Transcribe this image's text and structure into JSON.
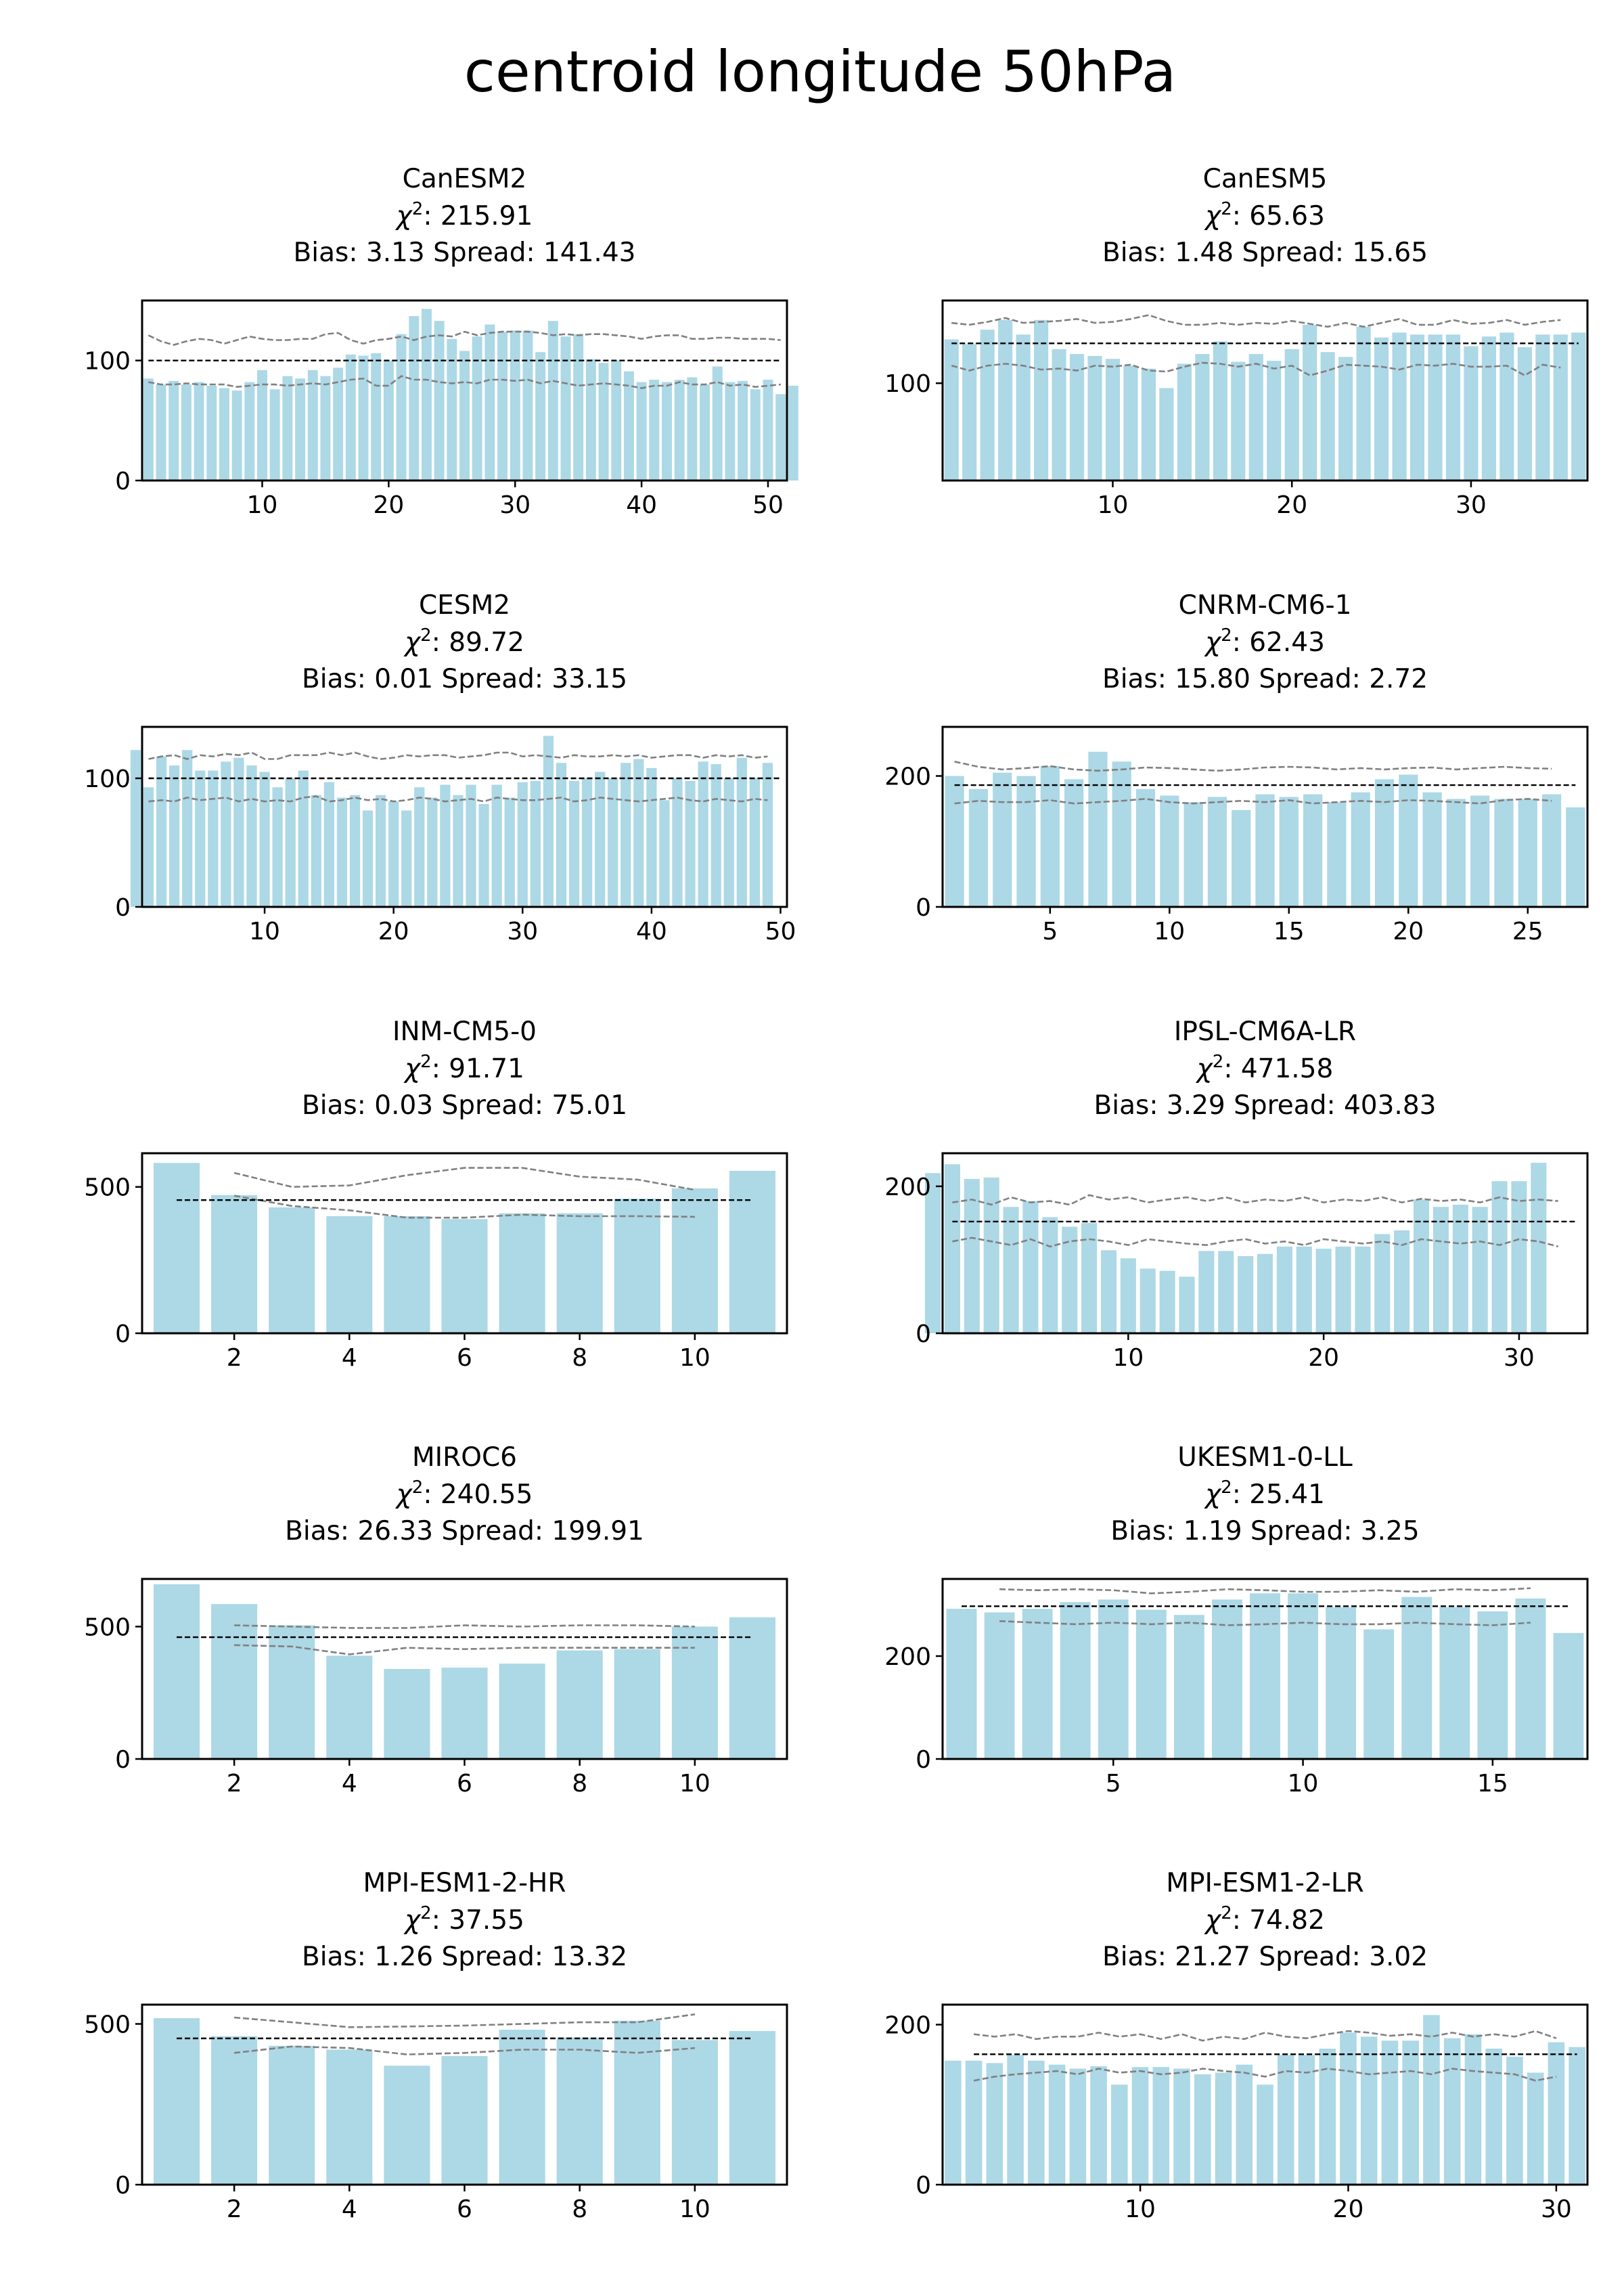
{
  "figure": {
    "title": "centroid longitude 50hPa"
  },
  "style": {
    "bar_color": "#add8e6",
    "ref_line_color": "#000000",
    "band_color": "#808080"
  },
  "chart_data": [
    {
      "type": "bar",
      "title": "CanESM2",
      "chi2_label": "215.91",
      "bias_label": "Bias: 3.13",
      "spread_label": "Spread: 141.43",
      "xlim": [
        0.5,
        51.5
      ],
      "ylim": [
        0,
        150
      ],
      "yticks": [
        0,
        100
      ],
      "xticks": [
        10,
        20,
        30,
        40,
        50
      ],
      "x_start": 1,
      "values": [
        85,
        80,
        83,
        80,
        82,
        79,
        77,
        75,
        82,
        92,
        76,
        87,
        85,
        92,
        87,
        94,
        105,
        104,
        106,
        100,
        122,
        137,
        143,
        133,
        118,
        108,
        120,
        130,
        124,
        125,
        125,
        107,
        133,
        120,
        122,
        101,
        98,
        100,
        91,
        82,
        84,
        82,
        84,
        86,
        80,
        95,
        82,
        83,
        76,
        84,
        72,
        79
      ],
      "ref_y": 100,
      "ref_x": [
        1,
        51
      ],
      "band_upper": [
        121,
        116,
        113,
        116,
        118,
        117,
        114,
        117,
        120,
        118,
        117,
        117,
        118,
        118,
        122,
        123,
        117,
        114,
        117,
        118,
        120,
        117,
        120,
        121,
        120,
        124,
        121,
        123,
        124,
        124,
        124,
        123,
        121,
        122,
        121,
        122,
        122,
        121,
        120,
        118,
        120,
        121,
        121,
        118,
        118,
        119,
        119,
        118,
        118,
        118,
        117
      ],
      "band_lower": [
        82,
        80,
        80,
        81,
        80,
        80,
        80,
        78,
        79,
        80,
        80,
        79,
        80,
        81,
        80,
        82,
        84,
        85,
        79,
        79,
        87,
        84,
        84,
        82,
        81,
        82,
        81,
        84,
        84,
        83,
        84,
        81,
        83,
        81,
        79,
        80,
        81,
        80,
        79,
        77,
        79,
        79,
        82,
        80,
        80,
        82,
        79,
        80,
        78,
        79,
        80
      ]
    },
    {
      "type": "bar",
      "title": "CanESM5",
      "chi2_label": "65.63",
      "bias_label": "Bias: 1.48",
      "spread_label": "Spread: 15.65",
      "xlim": [
        0.5,
        36.5
      ],
      "ylim": [
        0,
        185
      ],
      "yticks": [
        100
      ],
      "xticks": [
        10,
        20,
        30
      ],
      "x_start": 1,
      "values": [
        145,
        140,
        155,
        165,
        150,
        165,
        135,
        130,
        128,
        125,
        118,
        115,
        95,
        120,
        130,
        143,
        122,
        130,
        123,
        135,
        160,
        132,
        127,
        158,
        147,
        152,
        150,
        150,
        150,
        138,
        148,
        152,
        137,
        150,
        150,
        152
      ],
      "ref_y": 141,
      "ref_x": [
        1,
        36
      ],
      "band_upper": [
        162,
        160,
        163,
        167,
        162,
        163,
        164,
        166,
        162,
        163,
        166,
        170,
        164,
        160,
        160,
        162,
        160,
        162,
        161,
        164,
        161,
        158,
        162,
        158,
        162,
        166,
        160,
        160,
        165,
        161,
        162,
        165,
        160,
        163,
        165
      ],
      "band_lower": [
        118,
        113,
        118,
        120,
        118,
        114,
        115,
        113,
        118,
        117,
        119,
        113,
        112,
        117,
        121,
        120,
        117,
        120,
        115,
        118,
        108,
        113,
        119,
        118,
        117,
        114,
        119,
        118,
        120,
        117,
        117,
        118,
        108,
        119,
        116
      ]
    },
    {
      "type": "bar",
      "title": "CESM2",
      "chi2_label": "89.72",
      "bias_label": "Bias: 0.01",
      "spread_label": "Spread: 33.15",
      "xlim": [
        0.5,
        50.5
      ],
      "ylim": [
        0,
        140
      ],
      "yticks": [
        0,
        100
      ],
      "xticks": [
        10,
        20,
        30,
        40,
        50
      ],
      "x_start": 0,
      "values": [
        122,
        93,
        117,
        110,
        122,
        106,
        106,
        113,
        116,
        110,
        105,
        93,
        100,
        106,
        87,
        97,
        85,
        87,
        75,
        87,
        82,
        75,
        93,
        85,
        95,
        87,
        95,
        80,
        95,
        85,
        97,
        98,
        133,
        112,
        98,
        100,
        105,
        100,
        112,
        115,
        108,
        83,
        100,
        98,
        113,
        111,
        100,
        116,
        100,
        112
      ],
      "ref_y": 100,
      "ref_x": [
        1,
        50
      ],
      "band_upper": [
        115,
        117,
        118,
        115,
        118,
        117,
        119,
        118,
        120,
        115,
        115,
        118,
        118,
        118,
        120,
        118,
        120,
        117,
        115,
        116,
        118,
        117,
        118,
        118,
        116,
        117,
        118,
        120,
        120,
        117,
        118,
        117,
        116,
        118,
        117,
        117,
        118,
        117,
        118,
        116,
        117,
        118,
        118,
        116,
        118,
        117,
        118,
        116,
        117
      ],
      "band_lower": [
        82,
        83,
        82,
        85,
        83,
        84,
        85,
        82,
        84,
        82,
        83,
        82,
        85,
        86,
        82,
        83,
        85,
        83,
        84,
        82,
        83,
        85,
        84,
        82,
        83,
        84,
        82,
        85,
        84,
        83,
        83,
        84,
        85,
        82,
        83,
        85,
        84,
        83,
        82,
        83,
        84,
        85,
        83,
        82,
        84,
        83,
        82,
        84,
        83
      ]
    },
    {
      "type": "bar",
      "title": "CNRM-CM6-1",
      "chi2_label": "62.43",
      "bias_label": "Bias: 15.80",
      "spread_label": "Spread: 2.72",
      "xlim": [
        0.5,
        27.5
      ],
      "ylim": [
        0,
        275
      ],
      "yticks": [
        0,
        200
      ],
      "xticks": [
        5,
        10,
        15,
        20,
        25
      ],
      "x_start": 1,
      "values": [
        200,
        180,
        205,
        200,
        215,
        195,
        237,
        222,
        180,
        170,
        160,
        168,
        148,
        172,
        168,
        172,
        160,
        175,
        195,
        202,
        175,
        165,
        170,
        165,
        165,
        172,
        152
      ],
      "ref_y": 186,
      "ref_x": [
        1,
        27
      ],
      "band_upper": [
        222,
        214,
        210,
        212,
        215,
        210,
        208,
        210,
        213,
        212,
        210,
        208,
        210,
        213,
        214,
        213,
        210,
        212,
        210,
        212,
        213,
        210,
        212,
        214,
        212,
        211
      ],
      "band_lower": [
        158,
        162,
        160,
        160,
        163,
        158,
        160,
        162,
        165,
        160,
        158,
        160,
        162,
        160,
        163,
        158,
        160,
        162,
        160,
        163,
        162,
        160,
        158,
        163,
        165,
        162
      ]
    },
    {
      "type": "bar",
      "title": "INM-CM5-0",
      "chi2_label": "91.71",
      "bias_label": "Bias: 0.03",
      "spread_label": "Spread: 75.01",
      "xlim": [
        0.4,
        11.6
      ],
      "ylim": [
        0,
        615
      ],
      "yticks": [
        0,
        500
      ],
      "xticks": [
        2,
        4,
        6,
        8,
        10
      ],
      "x_start": 1,
      "values": [
        582,
        472,
        430,
        400,
        400,
        390,
        410,
        410,
        460,
        495,
        555
      ],
      "ref_y": 455,
      "ref_x": [
        1,
        11
      ],
      "band_upper": [
        null,
        548,
        500,
        505,
        540,
        565,
        565,
        535,
        525,
        490,
        null
      ],
      "band_lower": [
        null,
        470,
        435,
        420,
        395,
        395,
        405,
        400,
        400,
        398,
        null
      ]
    },
    {
      "type": "bar",
      "title": "IPSL-CM6A-LR",
      "chi2_label": "471.58",
      "bias_label": "Bias: 3.29",
      "spread_label": "Spread: 403.83",
      "xlim": [
        0.5,
        33.5
      ],
      "ylim": [
        0,
        245
      ],
      "yticks": [
        0,
        200
      ],
      "xticks": [
        10,
        20,
        30
      ],
      "x_start": 0,
      "values": [
        218,
        230,
        210,
        212,
        172,
        180,
        158,
        145,
        150,
        113,
        102,
        88,
        85,
        77,
        112,
        112,
        105,
        108,
        118,
        118,
        115,
        118,
        118,
        135,
        140,
        182,
        172,
        175,
        172,
        207,
        207,
        232
      ],
      "ref_y": 152,
      "ref_x": [
        1,
        33
      ],
      "band_upper": [
        178,
        182,
        175,
        185,
        178,
        180,
        175,
        188,
        182,
        185,
        178,
        182,
        185,
        180,
        185,
        178,
        182,
        180,
        185,
        178,
        182,
        180,
        185,
        178,
        183,
        180,
        182,
        178,
        185,
        180,
        182,
        180
      ],
      "band_lower": [
        125,
        130,
        125,
        120,
        128,
        118,
        125,
        128,
        125,
        120,
        128,
        125,
        122,
        120,
        125,
        128,
        122,
        125,
        120,
        128,
        125,
        122,
        125,
        120,
        128,
        125,
        122,
        125,
        120,
        128,
        125,
        118
      ]
    },
    {
      "type": "bar",
      "title": "MIROC6",
      "chi2_label": "240.55",
      "bias_label": "Bias: 26.33",
      "spread_label": "Spread: 199.91",
      "xlim": [
        0.4,
        11.6
      ],
      "ylim": [
        0,
        680
      ],
      "yticks": [
        0,
        500
      ],
      "xticks": [
        2,
        4,
        6,
        8,
        10
      ],
      "x_start": 1,
      "values": [
        660,
        585,
        505,
        390,
        340,
        345,
        360,
        410,
        415,
        500,
        535
      ],
      "ref_y": 460,
      "ref_x": [
        1,
        11
      ],
      "band_upper": [
        null,
        505,
        500,
        495,
        495,
        505,
        500,
        505,
        505,
        500,
        null
      ],
      "band_lower": [
        null,
        430,
        425,
        395,
        420,
        415,
        420,
        420,
        420,
        420,
        null
      ]
    },
    {
      "type": "bar",
      "title": "UKESM1-0-LL",
      "chi2_label": "25.41",
      "bias_label": "Bias: 1.19",
      "spread_label": "Spread: 3.25",
      "xlim": [
        0.5,
        17.5
      ],
      "ylim": [
        0,
        350
      ],
      "yticks": [
        0,
        200
      ],
      "xticks": [
        5,
        10,
        15
      ],
      "x_start": 1,
      "values": [
        292,
        285,
        292,
        305,
        310,
        290,
        280,
        310,
        322,
        322,
        295,
        252,
        315,
        295,
        287,
        312,
        245
      ],
      "ref_y": 297,
      "ref_x": [
        1,
        17
      ],
      "band_upper": [
        null,
        330,
        328,
        330,
        328,
        322,
        325,
        330,
        328,
        325,
        325,
        328,
        325,
        330,
        328,
        332,
        null
      ],
      "band_lower": [
        null,
        268,
        265,
        262,
        265,
        262,
        265,
        260,
        262,
        265,
        262,
        262,
        265,
        262,
        260,
        265,
        null
      ]
    },
    {
      "type": "bar",
      "title": "MPI-ESM1-2-HR",
      "chi2_label": "37.55",
      "bias_label": "Bias: 1.26",
      "spread_label": "Spread: 13.32",
      "xlim": [
        0.4,
        11.6
      ],
      "ylim": [
        0,
        560
      ],
      "yticks": [
        0,
        500
      ],
      "xticks": [
        2,
        4,
        6,
        8,
        10
      ],
      "x_start": 1,
      "values": [
        518,
        462,
        432,
        420,
        370,
        400,
        482,
        458,
        510,
        450,
        478
      ],
      "ref_y": 455,
      "ref_x": [
        1,
        11
      ],
      "band_upper": [
        null,
        520,
        505,
        490,
        492,
        495,
        500,
        505,
        505,
        530,
        null
      ],
      "band_lower": [
        null,
        410,
        430,
        425,
        405,
        410,
        420,
        420,
        410,
        425,
        null
      ]
    },
    {
      "type": "bar",
      "title": "MPI-ESM1-2-LR",
      "chi2_label": "74.82",
      "bias_label": "Bias: 21.27",
      "spread_label": "Spread: 3.02",
      "xlim": [
        0.5,
        31.5
      ],
      "ylim": [
        0,
        225
      ],
      "yticks": [
        0,
        200
      ],
      "xticks": [
        10,
        20,
        30
      ],
      "x_start": 1,
      "values": [
        155,
        155,
        152,
        162,
        155,
        150,
        145,
        148,
        125,
        147,
        147,
        145,
        138,
        140,
        150,
        125,
        162,
        162,
        170,
        190,
        185,
        180,
        180,
        212,
        183,
        188,
        170,
        160,
        140,
        178,
        172
      ],
      "ref_y": 163,
      "ref_x": [
        2,
        31
      ],
      "band_upper": [
        null,
        188,
        185,
        188,
        182,
        185,
        185,
        190,
        185,
        188,
        182,
        188,
        180,
        185,
        182,
        190,
        185,
        183,
        188,
        192,
        190,
        186,
        188,
        185,
        190,
        185,
        188,
        185,
        192,
        183,
        null
      ],
      "band_lower": [
        null,
        130,
        135,
        138,
        140,
        142,
        138,
        145,
        140,
        142,
        138,
        140,
        145,
        142,
        140,
        135,
        142,
        140,
        145,
        142,
        138,
        140,
        142,
        138,
        145,
        142,
        140,
        138,
        130,
        135,
        null
      ]
    }
  ]
}
